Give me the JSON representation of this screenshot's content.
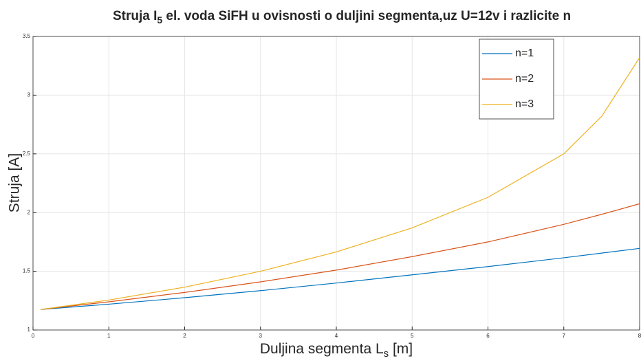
{
  "chart_data": {
    "type": "line",
    "title": [
      "Struja I",
      "5",
      " el. voda SiFH u ovisnosti o duljini segmenta,uz U=12v i razlicite n"
    ],
    "xlabel": [
      "Duljina segmenta L",
      "s",
      " [m]"
    ],
    "ylabel": "Struja [A]",
    "x": [
      0.1,
      1,
      2,
      3,
      4,
      5,
      6,
      7,
      7.5,
      8
    ],
    "series": [
      {
        "name": "n=1",
        "color": "#0072bd",
        "values": [
          1.175,
          1.22,
          1.275,
          1.335,
          1.4,
          1.47,
          1.54,
          1.615,
          1.655,
          1.695
        ]
      },
      {
        "name": "n=2",
        "color": "#d95319",
        "values": [
          1.175,
          1.24,
          1.32,
          1.41,
          1.51,
          1.625,
          1.75,
          1.9,
          1.985,
          2.075
        ]
      },
      {
        "name": "n=3",
        "color": "#edb120",
        "values": [
          1.175,
          1.255,
          1.365,
          1.5,
          1.665,
          1.87,
          2.13,
          2.5,
          2.82,
          3.32
        ]
      }
    ],
    "xlim": [
      0,
      8
    ],
    "xticks": [
      0,
      1,
      2,
      3,
      4,
      5,
      6,
      7,
      8
    ],
    "ylim": [
      1,
      3.5
    ],
    "yticks": [
      1,
      1.5,
      2,
      2.5,
      3,
      3.5
    ],
    "grid": true,
    "legend": "top-right"
  }
}
